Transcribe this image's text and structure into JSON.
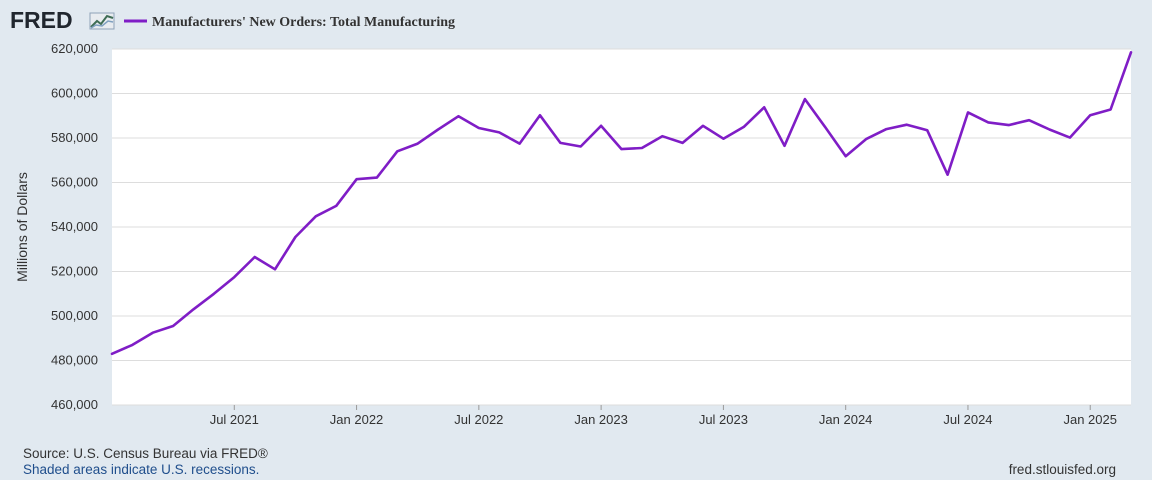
{
  "header": {
    "logo_text": "FRED",
    "logo_icon": "chart-line-icon"
  },
  "footer": {
    "source_text": "Source: U.S. Census Bureau via FRED®",
    "recession_link": "Shaded areas indicate U.S. recessions.",
    "site_url": "fred.stlouisfed.org"
  },
  "colors": {
    "background": "#e1e9f0",
    "plot_background": "#ffffff",
    "series": "#7f1dc6",
    "gridline": "#dddddd",
    "link": "#1f4e8c"
  },
  "chart_data": {
    "type": "line",
    "ylabel": "Millions of Dollars",
    "xlabel": "",
    "ylim": [
      460000,
      620000
    ],
    "yticks": [
      460000,
      480000,
      500000,
      520000,
      540000,
      560000,
      580000,
      600000,
      620000
    ],
    "ytick_labels": [
      "460,000",
      "480,000",
      "500,000",
      "520,000",
      "540,000",
      "560,000",
      "580,000",
      "600,000",
      "620,000"
    ],
    "xlim": [
      "2021-01",
      "2025-03"
    ],
    "xticks": [
      "2021-07",
      "2022-01",
      "2022-07",
      "2023-01",
      "2023-07",
      "2024-01",
      "2024-07",
      "2025-01"
    ],
    "xtick_labels": [
      "Jul 2021",
      "Jan 2022",
      "Jul 2022",
      "Jan 2023",
      "Jul 2023",
      "Jan 2024",
      "Jul 2024",
      "Jan 2025"
    ],
    "grid": true,
    "legend_position": "top-left",
    "series": [
      {
        "name": "Manufacturers' New Orders: Total Manufacturing",
        "color": "#7f1dc6",
        "x": [
          "2021-01",
          "2021-02",
          "2021-03",
          "2021-04",
          "2021-05",
          "2021-06",
          "2021-07",
          "2021-08",
          "2021-09",
          "2021-10",
          "2021-11",
          "2021-12",
          "2022-01",
          "2022-02",
          "2022-03",
          "2022-04",
          "2022-05",
          "2022-06",
          "2022-07",
          "2022-08",
          "2022-09",
          "2022-10",
          "2022-11",
          "2022-12",
          "2023-01",
          "2023-02",
          "2023-03",
          "2023-04",
          "2023-05",
          "2023-06",
          "2023-07",
          "2023-08",
          "2023-09",
          "2023-10",
          "2023-11",
          "2023-12",
          "2024-01",
          "2024-02",
          "2024-03",
          "2024-04",
          "2024-05",
          "2024-06",
          "2024-07",
          "2024-08",
          "2024-09",
          "2024-10",
          "2024-11",
          "2024-12",
          "2025-01",
          "2025-02",
          "2025-03"
        ],
        "values": [
          483000,
          487000,
          492500,
          495500,
          503000,
          510000,
          517500,
          526500,
          521000,
          535500,
          544800,
          549500,
          561500,
          562200,
          574000,
          577500,
          583800,
          589800,
          584500,
          582500,
          577500,
          590200,
          577800,
          576200,
          585500,
          575000,
          575500,
          580800,
          577800,
          585500,
          579700,
          585000,
          593800,
          576500,
          597500,
          584800,
          571800,
          579500,
          584000,
          586000,
          583500,
          563500,
          591500,
          587000,
          585800,
          588000,
          583800,
          580200,
          590200,
          592800,
          618500
        ]
      }
    ]
  }
}
